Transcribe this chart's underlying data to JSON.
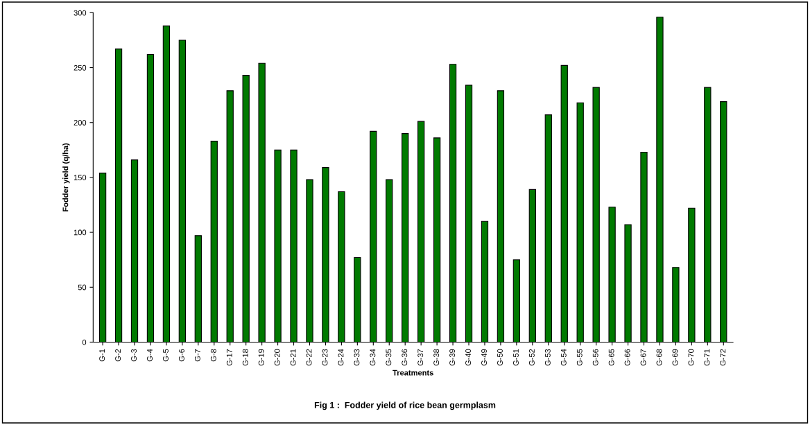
{
  "chart_data": {
    "type": "bar",
    "title": "Fig 1 :  Fodder yield of rice bean germplasm",
    "xlabel": "Treatments",
    "ylabel": "Fodder yield (q/ha)",
    "categories": [
      "G-1",
      "G-2",
      "G-3",
      "G-4",
      "G-5",
      "G-6",
      "G-7",
      "G-8",
      "G-17",
      "G-18",
      "G-19",
      "G-20",
      "G-21",
      "G-22",
      "G-23",
      "G-24",
      "G-33",
      "G-34",
      "G-35",
      "G-36",
      "G-37",
      "G-38",
      "G-39",
      "G-40",
      "G-49",
      "G-50",
      "G-51",
      "G-52",
      "G-53",
      "G-54",
      "G-55",
      "G-56",
      "G-65",
      "G-66",
      "G-67",
      "G-68",
      "G-69",
      "G-70",
      "G-71",
      "G-72"
    ],
    "values": [
      154,
      267,
      166,
      262,
      288,
      275,
      97,
      183,
      229,
      243,
      254,
      175,
      175,
      148,
      159,
      137,
      77,
      192,
      148,
      190,
      201,
      186,
      253,
      234,
      110,
      229,
      75,
      139,
      207,
      252,
      218,
      232,
      123,
      107,
      173,
      296,
      68,
      122,
      232,
      219
    ],
    "color": "#007a00",
    "ylim": [
      0,
      300
    ],
    "yticks": [
      0,
      50,
      100,
      150,
      200,
      250,
      300
    ],
    "grid": false,
    "legend": false
  }
}
